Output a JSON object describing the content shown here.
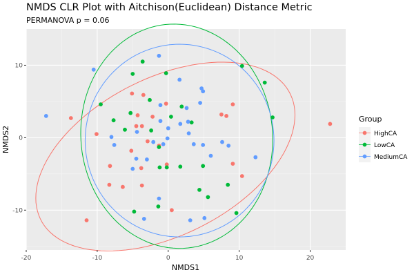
{
  "chart_data": {
    "type": "scatter",
    "title": "NMDS CLR Plot with Aitchison(Euclidean) Distance Metric",
    "subtitle": "PERMANOVA p = 0.06",
    "xlabel": "NMDS1",
    "ylabel": "NMDS2",
    "xlim": [
      -20,
      25
    ],
    "ylim": [
      -15.5,
      15
    ],
    "xticks": [
      -20,
      -10,
      0,
      10,
      20
    ],
    "yticks": [
      -10,
      0,
      10
    ],
    "grid": true,
    "legend": {
      "title": "Group",
      "position": "right"
    },
    "series": [
      {
        "name": "HighCA",
        "color": "#F8766D",
        "points": [
          [
            -11.5,
            -11.4
          ],
          [
            -13.7,
            2.7
          ],
          [
            -10.1,
            0.5
          ],
          [
            -8.2,
            -3.9
          ],
          [
            -8.3,
            -6.5
          ],
          [
            -6.4,
            -6.8
          ],
          [
            -5.1,
            6.1
          ],
          [
            -3.5,
            5.9
          ],
          [
            -0.3,
            4.7
          ],
          [
            -4.5,
            1.6
          ],
          [
            -3.7,
            1.6
          ],
          [
            -4.3,
            3.1
          ],
          [
            -2.2,
            2.9
          ],
          [
            -2.9,
            -0.5
          ],
          [
            -5.2,
            -1.8
          ],
          [
            -3.8,
            -4.2
          ],
          [
            -3.7,
            -6.6
          ],
          [
            -0.2,
            -3.7
          ],
          [
            0.5,
            -10.0
          ],
          [
            7.5,
            3.2
          ],
          [
            8.2,
            3.0
          ],
          [
            9.1,
            4.6
          ],
          [
            9.1,
            -3.6
          ],
          [
            10.4,
            -5.3
          ],
          [
            22.8,
            1.9
          ],
          [
            -1.3,
            -1.1
          ]
        ],
        "ellipse": {
          "center": [
            -0.4,
            -2.6
          ],
          "semi_axes": [
            19.6,
            10.9
          ],
          "rotation_deg": 26.0
        }
      },
      {
        "name": "LowCA",
        "color": "#00BA38",
        "points": [
          [
            10.4,
            9.9
          ],
          [
            13.6,
            7.6
          ],
          [
            14.7,
            2.8
          ],
          [
            -3.6,
            10.5
          ],
          [
            -0.3,
            8.9
          ],
          [
            -5.0,
            8.8
          ],
          [
            -9.5,
            4.6
          ],
          [
            -7.7,
            2.4
          ],
          [
            -5.3,
            3.4
          ],
          [
            -2.6,
            5.2
          ],
          [
            -2.4,
            1.0
          ],
          [
            -6.1,
            1.1
          ],
          [
            1.9,
            4.3
          ],
          [
            0.4,
            2.9
          ],
          [
            3.3,
            2.1
          ],
          [
            -1.3,
            -1.3
          ],
          [
            -1.2,
            -4.1
          ],
          [
            -0.2,
            -4.1
          ],
          [
            1.7,
            -4.0
          ],
          [
            4.9,
            -3.9
          ],
          [
            8.4,
            -6.5
          ],
          [
            4.4,
            -7.2
          ],
          [
            5.6,
            -8.2
          ],
          [
            9.6,
            -10.4
          ],
          [
            -4.8,
            -10.2
          ],
          [
            -1.4,
            -9.5
          ]
        ],
        "ellipse": {
          "center": [
            1.2,
            0.2
          ],
          "semi_axes": [
            13.5,
            15.5
          ],
          "rotation_deg": 6.0
        }
      },
      {
        "name": "MediumCA",
        "color": "#619CFF",
        "points": [
          [
            -17.2,
            3.0
          ],
          [
            -10.5,
            9.4
          ],
          [
            -1.3,
            11.3
          ],
          [
            1.6,
            8.0
          ],
          [
            4.7,
            6.8
          ],
          [
            4.9,
            6.4
          ],
          [
            -1.1,
            4.5
          ],
          [
            4.5,
            4.8
          ],
          [
            2.6,
            4.1
          ],
          [
            1.7,
            1.9
          ],
          [
            2.8,
            2.2
          ],
          [
            -4.4,
            0.8
          ],
          [
            -1.1,
            2.3
          ],
          [
            0.0,
            1.3
          ],
          [
            -0.1,
            -0.1
          ],
          [
            2.9,
            0.6
          ],
          [
            -8.0,
            0.1
          ],
          [
            -7.6,
            -1.0
          ],
          [
            -2.1,
            -0.6
          ],
          [
            -0.7,
            -0.9
          ],
          [
            3.6,
            -0.9
          ],
          [
            4.9,
            -1.0
          ],
          [
            7.6,
            -0.6
          ],
          [
            8.5,
            -1.1
          ],
          [
            6.0,
            -2.5
          ],
          [
            12.3,
            -2.7
          ],
          [
            -4.5,
            -2.9
          ],
          [
            -3.0,
            -3.0
          ],
          [
            -5.0,
            -4.3
          ],
          [
            -1.3,
            -8.4
          ],
          [
            -3.4,
            -11.2
          ],
          [
            3.1,
            -11.4
          ],
          [
            5.1,
            -11.1
          ]
        ],
        "ellipse": {
          "center": [
            1.6,
            -0.4
          ],
          "semi_axes": [
            13.3,
            13.3
          ],
          "rotation_deg": 0.0
        }
      }
    ]
  }
}
